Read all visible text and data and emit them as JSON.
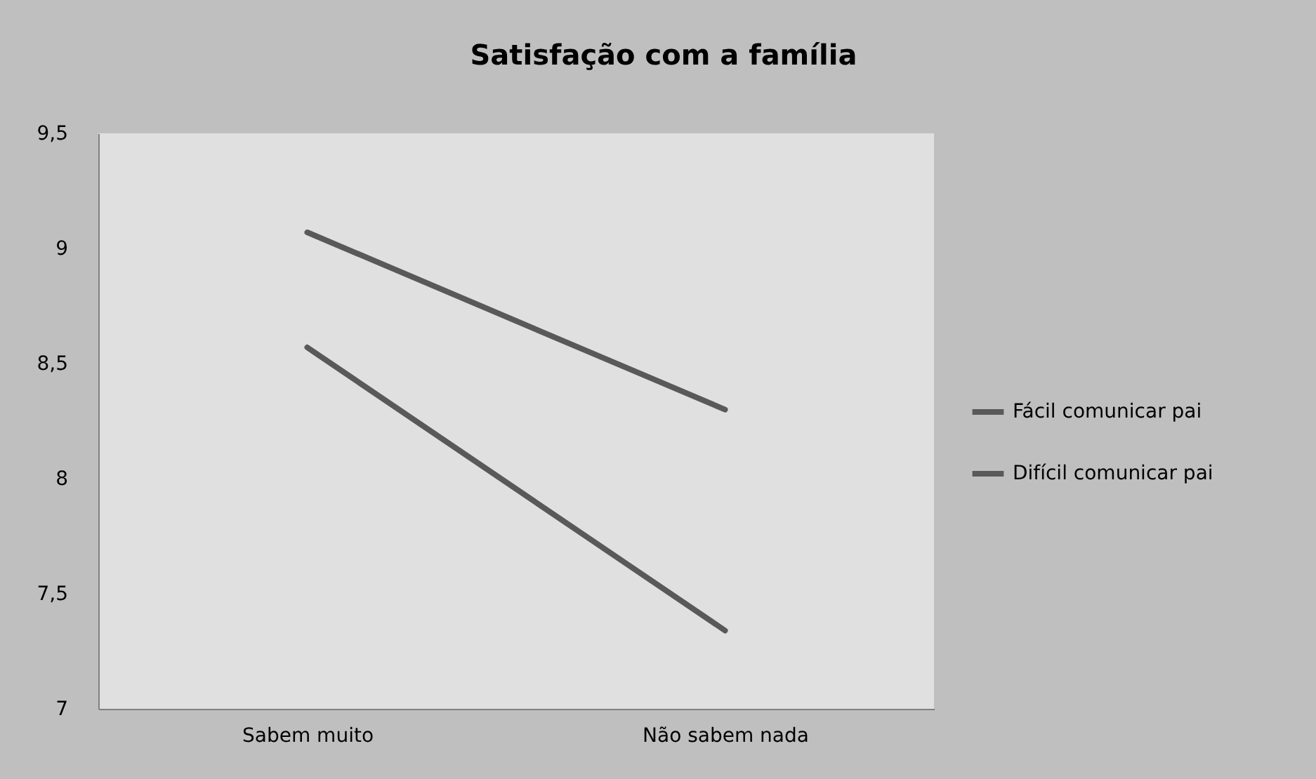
{
  "chart_data": {
    "type": "line",
    "title": "Satisfação com a família",
    "categories": [
      "Sabem muito",
      "Não sabem nada"
    ],
    "series": [
      {
        "name": "Fácil comunicar pai",
        "color": "#595959",
        "values": [
          9.07,
          8.3
        ]
      },
      {
        "name": "Difícil comunicar pai",
        "color": "#595959",
        "values": [
          8.57,
          7.34
        ]
      }
    ],
    "ylim": [
      7,
      9.5
    ],
    "yticks": [
      7,
      {
        "value": 7.5,
        "label": "7,5"
      },
      8,
      {
        "value": 8.5,
        "label": "8,5"
      },
      9,
      {
        "value": 9.5,
        "label": "9,5"
      }
    ],
    "grid": false,
    "legend": "right",
    "marker": "none",
    "line_style": "solid"
  }
}
